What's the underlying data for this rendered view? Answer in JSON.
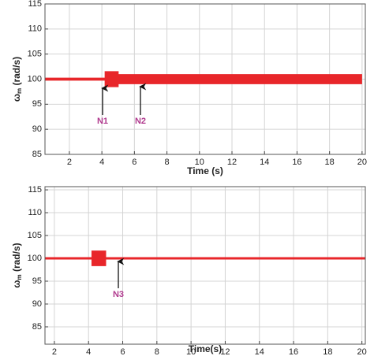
{
  "chart_data": [
    {
      "type": "band",
      "color": "#e8262a",
      "grid": true,
      "xlabel": "Time (s)",
      "ylabel": [
        "ω",
        "m",
        "  (rad/s)"
      ],
      "xlim": [
        0.5,
        20.2
      ],
      "xticks": [
        2,
        4,
        6,
        8,
        10,
        12,
        14,
        16,
        18,
        20
      ],
      "ylim": [
        85,
        115
      ],
      "yticks": [
        85,
        90,
        95,
        100,
        105,
        110,
        115
      ],
      "x": [
        0.5,
        4.2,
        4.2,
        5.0,
        5.0,
        20.0
      ],
      "series": [
        {
          "values": [
            100.2,
            100.2,
            101.5,
            101.5,
            100.9,
            100.9
          ]
        },
        {
          "values": [
            99.8,
            99.8,
            98.5,
            98.5,
            99.1,
            99.1
          ]
        }
      ],
      "annotations": [
        "N1",
        "N2"
      ]
    },
    {
      "type": "band",
      "color": "#e8262a",
      "grid": true,
      "xlabel": "Time(s)",
      "ylabel": [
        "ω",
        "m",
        " (rad/s)"
      ],
      "xlim": [
        1.45,
        20.2
      ],
      "xticks": [
        2,
        4,
        6,
        8,
        10,
        12,
        14,
        16,
        18,
        20
      ],
      "ylim": [
        81.2,
        115.7
      ],
      "yticks": [
        85,
        90,
        95,
        100,
        105,
        110,
        115
      ],
      "x": [
        1.45,
        4.2,
        4.2,
        5.0,
        5.0,
        20.2
      ],
      "series": [
        {
          "values": [
            100.15,
            100.15,
            101.6,
            101.6,
            100.15,
            100.15
          ]
        },
        {
          "values": [
            99.85,
            99.85,
            98.4,
            98.4,
            99.85,
            99.85
          ]
        }
      ],
      "annotations": [
        "N3"
      ]
    }
  ]
}
